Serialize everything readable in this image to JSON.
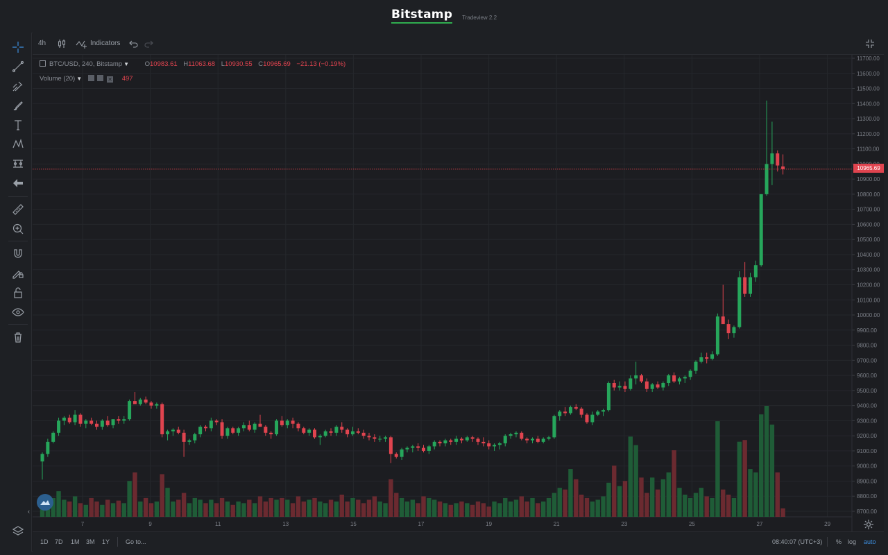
{
  "header": {
    "brand": "Bitstamp",
    "version": "Tradeview 2.2"
  },
  "toolbar": {
    "interval": "4h",
    "indicators_label": "Indicators"
  },
  "legend": {
    "symbol": "BTC/USD, 240, Bitstamp",
    "o_label": "O",
    "o_value": "10983.61",
    "h_label": "H",
    "h_value": "11063.68",
    "l_label": "L",
    "l_value": "10930.55",
    "c_label": "C",
    "c_value": "10965.69",
    "change": "−21.13 (−0.19%)",
    "volume_label": "Volume (20)",
    "volume_value": "497"
  },
  "current_price_label": "10965.69",
  "bottombar": {
    "ranges": [
      "1D",
      "7D",
      "1M",
      "3M",
      "1Y"
    ],
    "goto_label": "Go to...",
    "time": "08:40:07 (UTC+3)",
    "pct_label": "%",
    "log_label": "log",
    "auto_label": "auto"
  },
  "colors": {
    "up": "#26a65b",
    "down": "#e0444f",
    "up_vol": "#1f5c37",
    "down_vol": "#6b2a30",
    "grid": "#25272c",
    "axis_text": "#7b7f87"
  },
  "icons": [
    "crosshair-icon",
    "trend-line-icon",
    "pitchfork-icon",
    "brush-icon",
    "text-icon",
    "pattern-icon",
    "prediction-icon",
    "back-arrow-icon",
    "ruler-icon",
    "zoom-in-icon",
    "magnet-icon",
    "lock-drawings-icon",
    "lock-icon",
    "eye-icon",
    "trash-icon",
    "layers-icon",
    "candles-icon",
    "undo-icon",
    "redo-icon",
    "fullscreen-icon",
    "settings-icon"
  ],
  "chart_data": {
    "type": "candlestick",
    "symbol": "BTC/USD",
    "interval": "240",
    "y_range": [
      8650,
      11750
    ],
    "y_ticks": [
      "11700.00",
      "11600.00",
      "11500.00",
      "11400.00",
      "11300.00",
      "11200.00",
      "11100.00",
      "11000.00",
      "10900.00",
      "10800.00",
      "10700.00",
      "10600.00",
      "10500.00",
      "10400.00",
      "10300.00",
      "10200.00",
      "10100.00",
      "10000.00",
      "9900.00",
      "9800.00",
      "9700.00",
      "9600.00",
      "9500.00",
      "9400.00",
      "9300.00",
      "9200.00",
      "9100.00",
      "9000.00",
      "8900.00",
      "8800.00",
      "8700.00"
    ],
    "x_ticks": [
      "7",
      "9",
      "11",
      "13",
      "15",
      "17",
      "19",
      "21",
      "23",
      "25",
      "27",
      "29"
    ],
    "last_price": 10965.69,
    "candles": [
      [
        9030,
        9090,
        8910,
        9080,
        120
      ],
      [
        9080,
        9180,
        9060,
        9160,
        80
      ],
      [
        9160,
        9230,
        9150,
        9220,
        110
      ],
      [
        9220,
        9320,
        9200,
        9300,
        150
      ],
      [
        9300,
        9330,
        9270,
        9320,
        100
      ],
      [
        9320,
        9340,
        9280,
        9290,
        90
      ],
      [
        9290,
        9370,
        9270,
        9340,
        120
      ],
      [
        9340,
        9350,
        9260,
        9280,
        80
      ],
      [
        9280,
        9310,
        9250,
        9300,
        70
      ],
      [
        9300,
        9320,
        9270,
        9280,
        110
      ],
      [
        9280,
        9300,
        9240,
        9260,
        90
      ],
      [
        9260,
        9310,
        9240,
        9300,
        70
      ],
      [
        9300,
        9330,
        9260,
        9270,
        100
      ],
      [
        9270,
        9310,
        9250,
        9310,
        80
      ],
      [
        9310,
        9330,
        9280,
        9300,
        95
      ],
      [
        9300,
        9330,
        9280,
        9310,
        80
      ],
      [
        9310,
        9440,
        9300,
        9430,
        210
      ],
      [
        9430,
        9490,
        9410,
        9410,
        260
      ],
      [
        9410,
        9450,
        9400,
        9440,
        90
      ],
      [
        9440,
        9460,
        9410,
        9420,
        110
      ],
      [
        9420,
        9430,
        9380,
        9400,
        80
      ],
      [
        9400,
        9420,
        9380,
        9410,
        90
      ],
      [
        9410,
        9420,
        9190,
        9210,
        250
      ],
      [
        9210,
        9240,
        9170,
        9230,
        170
      ],
      [
        9230,
        9250,
        9200,
        9240,
        90
      ],
      [
        9240,
        9260,
        9210,
        9220,
        100
      ],
      [
        9220,
        9240,
        9060,
        9160,
        140
      ],
      [
        9160,
        9180,
        9140,
        9170,
        80
      ],
      [
        9170,
        9220,
        9150,
        9210,
        110
      ],
      [
        9210,
        9270,
        9190,
        9260,
        100
      ],
      [
        9260,
        9270,
        9230,
        9250,
        80
      ],
      [
        9250,
        9320,
        9230,
        9300,
        100
      ],
      [
        9300,
        9310,
        9270,
        9290,
        80
      ],
      [
        9290,
        9310,
        9180,
        9200,
        110
      ],
      [
        9200,
        9260,
        9180,
        9250,
        90
      ],
      [
        9250,
        9260,
        9210,
        9220,
        70
      ],
      [
        9220,
        9260,
        9200,
        9250,
        90
      ],
      [
        9250,
        9290,
        9230,
        9270,
        80
      ],
      [
        9270,
        9300,
        9230,
        9240,
        100
      ],
      [
        9240,
        9290,
        9220,
        9280,
        80
      ],
      [
        9280,
        9340,
        9260,
        9260,
        120
      ],
      [
        9260,
        9270,
        9200,
        9220,
        90
      ],
      [
        9220,
        9230,
        9180,
        9210,
        110
      ],
      [
        9210,
        9310,
        9200,
        9300,
        100
      ],
      [
        9300,
        9330,
        9260,
        9270,
        110
      ],
      [
        9270,
        9310,
        9250,
        9300,
        100
      ],
      [
        9300,
        9320,
        9250,
        9280,
        80
      ],
      [
        9280,
        9290,
        9230,
        9250,
        120
      ],
      [
        9250,
        9260,
        9210,
        9220,
        90
      ],
      [
        9220,
        9250,
        9200,
        9240,
        100
      ],
      [
        9240,
        9250,
        9180,
        9190,
        110
      ],
      [
        9190,
        9210,
        9140,
        9200,
        90
      ],
      [
        9200,
        9240,
        9190,
        9230,
        80
      ],
      [
        9230,
        9250,
        9200,
        9220,
        100
      ],
      [
        9220,
        9270,
        9200,
        9260,
        90
      ],
      [
        9260,
        9290,
        9220,
        9240,
        130
      ],
      [
        9240,
        9250,
        9190,
        9210,
        90
      ],
      [
        9210,
        9260,
        9200,
        9230,
        110
      ],
      [
        9230,
        9250,
        9210,
        9220,
        100
      ],
      [
        9220,
        9240,
        9180,
        9200,
        80
      ],
      [
        9200,
        9220,
        9170,
        9190,
        100
      ],
      [
        9190,
        9210,
        9160,
        9180,
        120
      ],
      [
        9180,
        9200,
        9160,
        9180,
        90
      ],
      [
        9180,
        9200,
        9160,
        9190,
        80
      ],
      [
        9190,
        9200,
        9020,
        9080,
        220
      ],
      [
        9080,
        9090,
        9050,
        9060,
        140
      ],
      [
        9060,
        9120,
        9040,
        9110,
        110
      ],
      [
        9110,
        9130,
        9090,
        9120,
        90
      ],
      [
        9120,
        9140,
        9090,
        9130,
        100
      ],
      [
        9130,
        9150,
        9100,
        9120,
        80
      ],
      [
        9120,
        9140,
        9090,
        9100,
        120
      ],
      [
        9100,
        9140,
        9080,
        9130,
        110
      ],
      [
        9130,
        9170,
        9110,
        9160,
        100
      ],
      [
        9160,
        9170,
        9130,
        9150,
        90
      ],
      [
        9150,
        9180,
        9130,
        9170,
        80
      ],
      [
        9170,
        9180,
        9140,
        9160,
        70
      ],
      [
        9160,
        9200,
        9140,
        9180,
        80
      ],
      [
        9180,
        9190,
        9150,
        9170,
        90
      ],
      [
        9170,
        9200,
        9160,
        9190,
        80
      ],
      [
        9190,
        9200,
        9160,
        9180,
        70
      ],
      [
        9180,
        9190,
        9140,
        9160,
        90
      ],
      [
        9160,
        9190,
        9130,
        9150,
        80
      ],
      [
        9150,
        9170,
        9110,
        9130,
        60
      ],
      [
        9130,
        9150,
        9100,
        9140,
        90
      ],
      [
        9140,
        9160,
        9110,
        9150,
        80
      ],
      [
        9150,
        9210,
        9130,
        9200,
        110
      ],
      [
        9200,
        9220,
        9180,
        9210,
        90
      ],
      [
        9210,
        9230,
        9190,
        9220,
        100
      ],
      [
        9220,
        9230,
        9170,
        9180,
        120
      ],
      [
        9180,
        9190,
        9150,
        9170,
        90
      ],
      [
        9170,
        9190,
        9150,
        9180,
        110
      ],
      [
        9180,
        9200,
        9150,
        9160,
        80
      ],
      [
        9160,
        9190,
        9150,
        9180,
        90
      ],
      [
        9180,
        9200,
        9170,
        9190,
        110
      ],
      [
        9190,
        9340,
        9180,
        9330,
        140
      ],
      [
        9330,
        9370,
        9300,
        9360,
        170
      ],
      [
        9360,
        9390,
        9330,
        9350,
        160
      ],
      [
        9350,
        9400,
        9340,
        9390,
        280
      ],
      [
        9390,
        9410,
        9370,
        9380,
        220
      ],
      [
        9380,
        9390,
        9320,
        9340,
        130
      ],
      [
        9340,
        9350,
        9280,
        9290,
        110
      ],
      [
        9290,
        9360,
        9270,
        9340,
        90
      ],
      [
        9340,
        9370,
        9330,
        9360,
        100
      ],
      [
        9360,
        9380,
        9330,
        9370,
        120
      ],
      [
        9370,
        9560,
        9360,
        9550,
        200
      ],
      [
        9550,
        9570,
        9500,
        9520,
        300
      ],
      [
        9520,
        9560,
        9500,
        9530,
        180
      ],
      [
        9530,
        9560,
        9490,
        9510,
        210
      ],
      [
        9510,
        9600,
        9500,
        9580,
        470
      ],
      [
        9580,
        9690,
        9540,
        9600,
        420
      ],
      [
        9600,
        9610,
        9550,
        9560,
        230
      ],
      [
        9560,
        9580,
        9490,
        9510,
        140
      ],
      [
        9510,
        9550,
        9490,
        9540,
        230
      ],
      [
        9540,
        9560,
        9510,
        9520,
        160
      ],
      [
        9520,
        9560,
        9500,
        9550,
        220
      ],
      [
        9550,
        9610,
        9530,
        9600,
        260
      ],
      [
        9600,
        9620,
        9550,
        9560,
        390
      ],
      [
        9560,
        9590,
        9540,
        9580,
        170
      ],
      [
        9580,
        9600,
        9550,
        9590,
        130
      ],
      [
        9590,
        9640,
        9570,
        9630,
        110
      ],
      [
        9630,
        9700,
        9610,
        9690,
        140
      ],
      [
        9690,
        9750,
        9680,
        9720,
        170
      ],
      [
        9720,
        9750,
        9680,
        9710,
        120
      ],
      [
        9710,
        9760,
        9700,
        9740,
        110
      ],
      [
        9740,
        10010,
        9730,
        9990,
        560
      ],
      [
        9990,
        10200,
        9960,
        9940,
        160
      ],
      [
        9940,
        9970,
        9840,
        9880,
        130
      ],
      [
        9880,
        9930,
        9850,
        9920,
        110
      ],
      [
        9920,
        10290,
        9910,
        10250,
        440
      ],
      [
        10250,
        10350,
        10120,
        10140,
        450
      ],
      [
        10140,
        10280,
        10120,
        10250,
        280
      ],
      [
        10250,
        10360,
        10220,
        10330,
        260
      ],
      [
        10330,
        10800,
        10320,
        10800,
        600
      ],
      [
        10800,
        11420,
        10790,
        11000,
        650
      ],
      [
        11000,
        11280,
        10860,
        11070,
        540
      ],
      [
        11070,
        11090,
        10950,
        10990,
        260
      ],
      [
        10983.61,
        11063.68,
        10930.55,
        10965.69,
        50
      ]
    ]
  }
}
